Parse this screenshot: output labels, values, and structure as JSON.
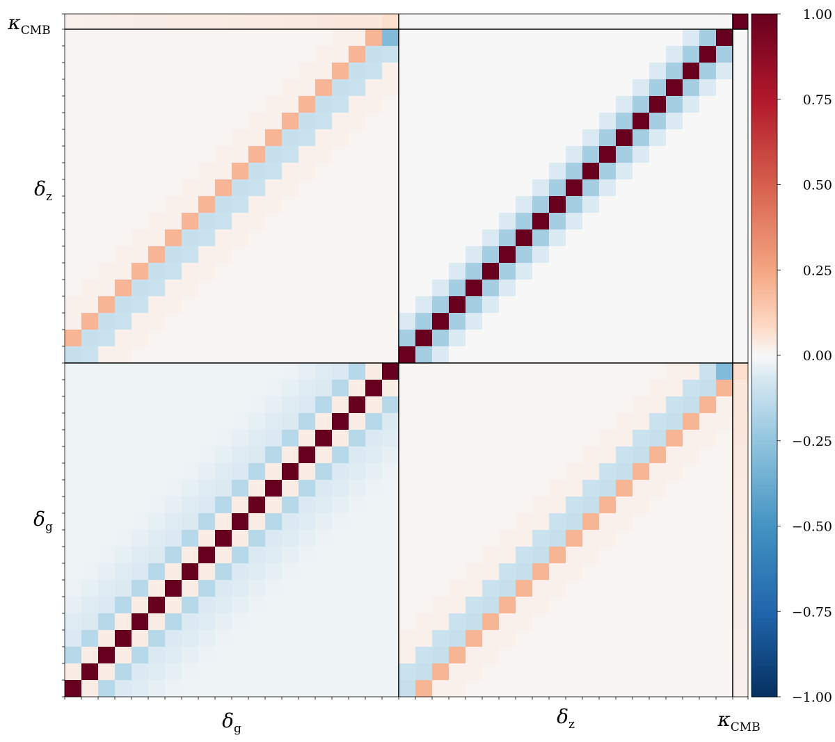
{
  "chart_data": {
    "type": "heatmap",
    "title": "",
    "description_blocks": [
      "δg",
      "δz",
      "κCMB"
    ],
    "axis_labels": [
      {
        "main": "δ",
        "sub": "g"
      },
      {
        "main": "δ",
        "sub": "z"
      },
      {
        "main": "κ",
        "sub": "CMB"
      }
    ],
    "block_sizes": [
      20,
      20,
      1
    ],
    "colorbar": {
      "colormap": "RdBu_r",
      "vmin": -1.0,
      "vmax": 1.0,
      "ticks": [
        "1.00",
        "0.75",
        "0.50",
        "0.25",
        "0.00",
        "−0.25",
        "−0.50",
        "−0.75",
        "−1.00"
      ],
      "tick_values": [
        1.0,
        0.75,
        0.5,
        0.25,
        0.0,
        -0.25,
        -0.5,
        -0.75,
        -1.0
      ]
    },
    "structure": {
      "gg_diagonal": 1.0,
      "gg_offdiag_1": 0.03,
      "gg_offdiag_2": -0.15,
      "gg_offdiag_far": -0.06,
      "zz_diagonal": 1.0,
      "zz_offdiag_1": -0.2,
      "zz_offdiag_2": -0.06,
      "gz_same_bin": 0.2,
      "gz_offset_bin": -0.2,
      "gz_far": 0.02,
      "g_kappa": 0.05,
      "z_kappa": 0.0,
      "last_g_kappa": 0.07,
      "last_z_bin_g": -0.3
    }
  }
}
